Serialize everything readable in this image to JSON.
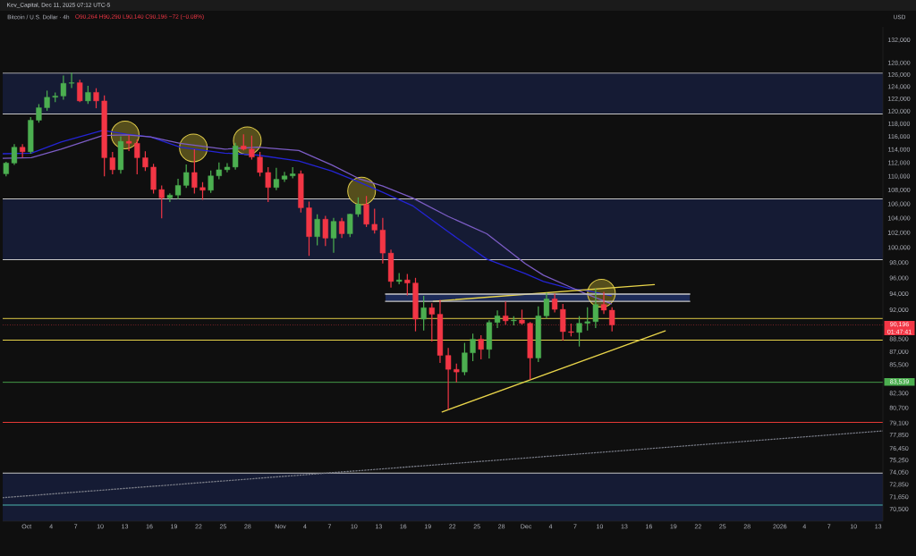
{
  "chart_data": {
    "type": "candlestick",
    "title": "Bitcoin / U.S. Dollar · 4h",
    "subtitle": "O90,264 H90,290 L90,140 C90,196 −72 (−0.08%)",
    "ylabel": "USD",
    "annotations": [
      "Kev_Capital, Dec 11, 2025 07:12 UTC-5",
      "01:47:41"
    ],
    "x": [
      "2025-09-28T12:00",
      "2025-09-29T12:00",
      "2025-09-30T12:00",
      "2025-10-01T12:00",
      "2025-10-02T12:00",
      "2025-10-03T12:00",
      "2025-10-04T12:00",
      "2025-10-05T12:00",
      "2025-10-06T12:00",
      "2025-10-07T12:00",
      "2025-10-08T12:00",
      "2025-10-09T12:00",
      "2025-10-10T12:00",
      "2025-10-11T12:00",
      "2025-10-12T12:00",
      "2025-10-13T12:00",
      "2025-10-14T12:00",
      "2025-10-15T12:00",
      "2025-10-16T12:00",
      "2025-10-17T12:00",
      "2025-10-18T12:00",
      "2025-10-19T12:00",
      "2025-10-20T12:00",
      "2025-10-21T12:00",
      "2025-10-22T12:00",
      "2025-10-23T12:00",
      "2025-10-24T12:00",
      "2025-10-25T12:00",
      "2025-10-26T12:00",
      "2025-10-27T12:00",
      "2025-10-28T12:00",
      "2025-10-29T12:00",
      "2025-10-30T12:00",
      "2025-10-31T12:00",
      "2025-11-01T12:00",
      "2025-11-02T12:00",
      "2025-11-03T12:00",
      "2025-11-04T12:00",
      "2025-11-05T12:00",
      "2025-11-06T12:00",
      "2025-11-07T12:00",
      "2025-11-08T12:00",
      "2025-11-09T12:00",
      "2025-11-10T12:00",
      "2025-11-11T12:00",
      "2025-11-12T12:00",
      "2025-11-13T12:00",
      "2025-11-14T12:00",
      "2025-11-15T12:00",
      "2025-11-16T12:00",
      "2025-11-17T12:00",
      "2025-11-18T12:00",
      "2025-11-19T12:00",
      "2025-11-20T12:00",
      "2025-11-21T12:00",
      "2025-11-22T12:00",
      "2025-11-23T12:00",
      "2025-11-24T12:00",
      "2025-11-25T12:00",
      "2025-11-26T12:00",
      "2025-11-27T12:00",
      "2025-11-28T12:00",
      "2025-11-29T12:00",
      "2025-11-30T12:00",
      "2025-12-01T12:00",
      "2025-12-02T12:00",
      "2025-12-03T12:00",
      "2025-12-04T12:00",
      "2025-12-05T12:00",
      "2025-12-06T12:00",
      "2025-12-07T12:00",
      "2025-12-08T12:00",
      "2025-12-09T12:00",
      "2025-12-10T12:00",
      "2025-12-11T12:00"
    ],
    "ohlc": [
      [
        110400,
        112100,
        110100,
        112000
      ],
      [
        112000,
        114800,
        111800,
        114400
      ],
      [
        114400,
        114800,
        112900,
        113700
      ],
      [
        113700,
        119000,
        113500,
        118600
      ],
      [
        118600,
        121100,
        118300,
        120600
      ],
      [
        120600,
        123300,
        120200,
        122300
      ],
      [
        122300,
        123000,
        121600,
        122500
      ],
      [
        122500,
        125800,
        122000,
        124600
      ],
      [
        124600,
        126300,
        123900,
        124700
      ],
      [
        124700,
        125100,
        121600,
        121700
      ],
      [
        121700,
        124100,
        121300,
        123100
      ],
      [
        123100,
        123700,
        120600,
        121700
      ],
      [
        121700,
        122500,
        110100,
        112800
      ],
      [
        112800,
        113600,
        110400,
        111000
      ],
      [
        111000,
        116000,
        110500,
        115300
      ],
      [
        115300,
        116200,
        113900,
        115000
      ],
      [
        115000,
        115500,
        110400,
        112800
      ],
      [
        112800,
        113700,
        110900,
        111400
      ],
      [
        111400,
        111800,
        107600,
        108100
      ],
      [
        108100,
        108600,
        104100,
        106900
      ],
      [
        106900,
        107500,
        106400,
        107300
      ],
      [
        107300,
        109600,
        106800,
        108700
      ],
      [
        108700,
        111700,
        108400,
        110600
      ],
      [
        110600,
        114000,
        107600,
        108400
      ],
      [
        108400,
        109100,
        106700,
        108000
      ],
      [
        108000,
        110800,
        107700,
        110100
      ],
      [
        110100,
        112000,
        109700,
        111000
      ],
      [
        111000,
        111900,
        110700,
        111400
      ],
      [
        111400,
        115000,
        111100,
        114600
      ],
      [
        114600,
        116300,
        114000,
        114100
      ],
      [
        114100,
        116100,
        112600,
        112900
      ],
      [
        112900,
        113600,
        110100,
        110600
      ],
      [
        110600,
        111300,
        106400,
        108400
      ],
      [
        108400,
        111200,
        108100,
        109600
      ],
      [
        109600,
        110600,
        109300,
        110100
      ],
      [
        110100,
        111300,
        109800,
        110400
      ],
      [
        110400,
        110800,
        104900,
        105500
      ],
      [
        105500,
        106300,
        99000,
        101500
      ],
      [
        101500,
        104500,
        100400,
        103900
      ],
      [
        103900,
        104300,
        100300,
        101300
      ],
      [
        101300,
        104000,
        99400,
        103600
      ],
      [
        103600,
        104000,
        101400,
        101900
      ],
      [
        101900,
        104600,
        101500,
        104600
      ],
      [
        104600,
        106900,
        104300,
        106000
      ],
      [
        106000,
        107100,
        102900,
        103200
      ],
      [
        103200,
        105300,
        102000,
        102400
      ],
      [
        102400,
        104000,
        98000,
        99300
      ],
      [
        99300,
        99700,
        94900,
        95600
      ],
      [
        95600,
        96600,
        95300,
        95800
      ],
      [
        95800,
        96500,
        93900,
        95400
      ],
      [
        95400,
        96000,
        89500,
        90900
      ],
      [
        90900,
        93700,
        89600,
        92300
      ],
      [
        92300,
        92800,
        88300,
        91500
      ],
      [
        91500,
        93200,
        85800,
        86600
      ],
      [
        86600,
        87400,
        80600,
        85000
      ],
      [
        85000,
        85600,
        83600,
        84700
      ],
      [
        84700,
        88000,
        84400,
        86900
      ],
      [
        86900,
        89100,
        86000,
        88500
      ],
      [
        88500,
        88900,
        86200,
        87300
      ],
      [
        87300,
        90700,
        86300,
        90500
      ],
      [
        90500,
        91900,
        89900,
        91300
      ],
      [
        91300,
        93000,
        90300,
        90700
      ],
      [
        90700,
        91200,
        90200,
        90800
      ],
      [
        90800,
        92000,
        90300,
        90400
      ],
      [
        90400,
        90500,
        83900,
        86300
      ],
      [
        86300,
        92400,
        85900,
        91300
      ],
      [
        91300,
        94100,
        91000,
        93400
      ],
      [
        93400,
        94000,
        91800,
        92100
      ],
      [
        92100,
        92700,
        88400,
        89400
      ],
      [
        89400,
        90300,
        88900,
        89300
      ],
      [
        89300,
        91200,
        87700,
        90400
      ],
      [
        90400,
        92300,
        89600,
        90600
      ],
      [
        90600,
        94600,
        89900,
        92700
      ],
      [
        92700,
        94200,
        91600,
        92000
      ],
      [
        92000,
        92300,
        89500,
        90196
      ]
    ],
    "colors": [
      "#4caf50",
      "#4caf50",
      "#f23645",
      "#4caf50",
      "#4caf50",
      "#4caf50",
      "#4caf50",
      "#4caf50",
      "#4caf50",
      "#f23645",
      "#4caf50",
      "#f23645",
      "#f23645",
      "#f23645",
      "#4caf50",
      "#f23645",
      "#f23645",
      "#f23645",
      "#f23645",
      "#f23645",
      "#4caf50",
      "#4caf50",
      "#4caf50",
      "#f23645",
      "#f23645",
      "#4caf50",
      "#4caf50",
      "#4caf50",
      "#4caf50",
      "#f23645",
      "#f23645",
      "#f23645",
      "#f23645",
      "#4caf50",
      "#4caf50",
      "#4caf50",
      "#f23645",
      "#f23645",
      "#4caf50",
      "#f23645",
      "#4caf50",
      "#f23645",
      "#4caf50",
      "#4caf50",
      "#f23645",
      "#f23645",
      "#f23645",
      "#f23645",
      "#4caf50",
      "#f23645",
      "#f23645",
      "#4caf50",
      "#f23645",
      "#f23645",
      "#f23645",
      "#f23645",
      "#4caf50",
      "#4caf50",
      "#f23645",
      "#4caf50",
      "#4caf50",
      "#f23645",
      "#4caf50",
      "#f23645",
      "#f23645",
      "#4caf50",
      "#4caf50",
      "#f23645",
      "#f23645",
      "#f23645",
      "#4caf50",
      "#4caf50",
      "#4caf50",
      "#f23645",
      "#f23645"
    ],
    "series": [
      {
        "type": "line",
        "color": "#2424d4",
        "x": [
          "2025-09-28T02:00",
          "2025-10-01T14:00",
          "2025-10-05T05:00",
          "2025-10-10T07:00",
          "2025-10-13T05:00",
          "2025-10-16T03:00",
          "2025-10-19T18:00",
          "2025-10-25T05:00",
          "2025-10-29T05:00",
          "2025-11-03T06:00",
          "2025-11-07T07:00",
          "2025-11-10T14:00",
          "2025-11-13T12:00",
          "2025-11-17T03:00",
          "2025-11-21T11:00",
          "2025-11-26T05:00",
          "2025-11-30T22:00",
          "2025-12-03T03:00",
          "2025-12-06T09:00",
          "2025-12-08T04:00",
          "2025-12-11T10:00"
        ],
        "values": [
          113400,
          113500,
          115200,
          117000,
          116400,
          116000,
          114400,
          113500,
          113200,
          112300,
          110800,
          109200,
          107700,
          105800,
          102200,
          98500,
          96600,
          95600,
          94700,
          94500,
          93800
        ]
      },
      {
        "type": "line",
        "color": "#7b5cc4",
        "x": [
          "2025-09-28T02:00",
          "2025-10-01T14:00",
          "2025-10-05T05:00",
          "2025-10-10T07:00",
          "2025-10-13T05:00",
          "2025-10-16T03:00",
          "2025-10-19T18:00",
          "2025-10-25T05:00",
          "2025-10-29T05:00",
          "2025-11-03T06:00",
          "2025-11-07T07:00",
          "2025-11-10T14:00",
          "2025-11-13T12:00",
          "2025-11-17T03:00",
          "2025-11-21T11:00",
          "2025-11-26T05:00",
          "2025-11-30T22:00",
          "2025-12-03T03:00",
          "2025-12-06T09:00",
          "2025-12-08T04:00",
          "2025-12-11T10:00"
        ],
        "values": [
          112700,
          112800,
          114100,
          116200,
          116300,
          116000,
          115000,
          114100,
          114400,
          113900,
          111700,
          109700,
          108600,
          106900,
          104300,
          101900,
          97900,
          96400,
          94900,
          94100,
          92800
        ]
      },
      {
        "type": "line",
        "color": "#e8d44a",
        "x": [
          "2025-11-19T16:00",
          "2025-12-16T16:00"
        ],
        "values": [
          93100,
          95200
        ]
      },
      {
        "type": "line",
        "color": "#e8d44a",
        "x": [
          "2025-11-20T18:00",
          "2025-12-18T00:00"
        ],
        "values": [
          80300,
          89500
        ]
      },
      {
        "type": "line",
        "color": "#787b86",
        "line_style": "dotted",
        "x": [
          "2025-09-28T02:00",
          "2026-01-13T14:00"
        ],
        "values": [
          71600,
          78300
        ]
      },
      {
        "type": "line",
        "color": "#c8c8c8",
        "x": [
          "2025-11-13T20:00",
          "2025-12-21T00:00"
        ],
        "values": [
          94000,
          94000
        ],
        "lower": [
          93100,
          93100
        ],
        "upper": [
          94000,
          94000
        ]
      },
      {
        "type": "line",
        "color": "#c8c8c8",
        "x": [
          "2025-11-13T20:00",
          "2025-12-21T00:00"
        ],
        "values": [
          93100,
          93100
        ]
      },
      {
        "type": "scatter",
        "color": "#e0cc4a",
        "marker": "circle",
        "x": [
          "2025-10-13T01:00",
          "2025-10-21T09:00",
          "2025-10-27T23:00",
          "2025-11-10T22:00",
          "2025-12-10T05:00"
        ],
        "values": [
          116300,
          114300,
          115400,
          107900,
          94100
        ]
      }
    ],
    "ref_lines": [
      {
        "axis": "y",
        "value": 90196,
        "label": "90,196",
        "color": "#f23645",
        "line_style": "dotted"
      },
      {
        "axis": "y",
        "value": 83539,
        "label": "83,539",
        "color": "#4caf50"
      },
      {
        "axis": "y",
        "value": 126300,
        "color": "#c8c8c8"
      },
      {
        "axis": "y",
        "value": 119600,
        "color": "#c8c8c8"
      },
      {
        "axis": "y",
        "value": 106750,
        "color": "#c8c8c8"
      },
      {
        "axis": "y",
        "value": 98430,
        "color": "#c8c8c8"
      },
      {
        "axis": "y",
        "value": 91000,
        "color": "#e8d44a"
      },
      {
        "axis": "y",
        "value": 88400,
        "color": "#e8d44a"
      },
      {
        "axis": "y",
        "value": 79200,
        "color": "#e53935"
      },
      {
        "axis": "y",
        "value": 74000,
        "color": "#c8c8c8"
      },
      {
        "axis": "y",
        "value": 70900,
        "color": "#4db6ac"
      }
    ],
    "bands": [
      {
        "axis": "y",
        "from": 119600,
        "to": 126300,
        "color": "#151b34"
      },
      {
        "axis": "y",
        "from": 98430,
        "to": 106750,
        "color": "#151b34"
      },
      {
        "axis": "y",
        "from": 69400,
        "to": 74000,
        "color": "#151b34"
      }
    ],
    "xlim": [
      "2025-09-28T02:00",
      "2026-01-13T14:00"
    ],
    "ylim": [
      69400,
      134400
    ],
    "log": true,
    "xticks": [
      {
        "value": "2025-10-01",
        "label": "Oct"
      },
      {
        "value": "2025-10-04",
        "label": "4"
      },
      {
        "value": "2025-10-07",
        "label": "7"
      },
      {
        "value": "2025-10-10",
        "label": "10"
      },
      {
        "value": "2025-10-13",
        "label": "13"
      },
      {
        "value": "2025-10-16",
        "label": "16"
      },
      {
        "value": "2025-10-19",
        "label": "19"
      },
      {
        "value": "2025-10-22",
        "label": "22"
      },
      {
        "value": "2025-10-25",
        "label": "25"
      },
      {
        "value": "2025-10-28",
        "label": "28"
      },
      {
        "value": "2025-11-01",
        "label": "Nov"
      },
      {
        "value": "2025-11-04",
        "label": "4"
      },
      {
        "value": "2025-11-07",
        "label": "7"
      },
      {
        "value": "2025-11-10",
        "label": "10"
      },
      {
        "value": "2025-11-13",
        "label": "13"
      },
      {
        "value": "2025-11-16",
        "label": "16"
      },
      {
        "value": "2025-11-19",
        "label": "19"
      },
      {
        "value": "2025-11-22",
        "label": "22"
      },
      {
        "value": "2025-11-25",
        "label": "25"
      },
      {
        "value": "2025-11-28",
        "label": "28"
      },
      {
        "value": "2025-12-01",
        "label": "Dec"
      },
      {
        "value": "2025-12-04",
        "label": "4"
      },
      {
        "value": "2025-12-07",
        "label": "7"
      },
      {
        "value": "2025-12-10",
        "label": "10"
      },
      {
        "value": "2025-12-13",
        "label": "13"
      },
      {
        "value": "2025-12-16",
        "label": "16"
      },
      {
        "value": "2025-12-19",
        "label": "19"
      },
      {
        "value": "2025-12-22",
        "label": "22"
      },
      {
        "value": "2025-12-25",
        "label": "25"
      },
      {
        "value": "2025-12-28",
        "label": "28"
      },
      {
        "value": "2026-01-01",
        "label": "2026"
      },
      {
        "value": "2026-01-04",
        "label": "4"
      },
      {
        "value": "2026-01-07",
        "label": "7"
      },
      {
        "value": "2026-01-10",
        "label": "10"
      },
      {
        "value": "2026-01-13",
        "label": "13"
      }
    ],
    "yticks": [
      {
        "value": 132000,
        "label": "132,000"
      },
      {
        "value": 128000,
        "label": "128,000"
      },
      {
        "value": 126000,
        "label": "126,000"
      },
      {
        "value": 124000,
        "label": "124,000"
      },
      {
        "value": 122000,
        "label": "122,000"
      },
      {
        "value": 120000,
        "label": "120,000"
      },
      {
        "value": 118000,
        "label": "118,000"
      },
      {
        "value": 116000,
        "label": "116,000"
      },
      {
        "value": 114000,
        "label": "114,000"
      },
      {
        "value": 112000,
        "label": "112,000"
      },
      {
        "value": 110000,
        "label": "110,000"
      },
      {
        "value": 108000,
        "label": "108,000"
      },
      {
        "value": 106000,
        "label": "106,000"
      },
      {
        "value": 104000,
        "label": "104,000"
      },
      {
        "value": 102000,
        "label": "102,000"
      },
      {
        "value": 100000,
        "label": "100,000"
      },
      {
        "value": 98000,
        "label": "98,000"
      },
      {
        "value": 96000,
        "label": "96,000"
      },
      {
        "value": 94000,
        "label": "94,000"
      },
      {
        "value": 92000,
        "label": "92,000"
      },
      {
        "value": 88500,
        "label": "88,500"
      },
      {
        "value": 87000,
        "label": "87,000"
      },
      {
        "value": 85500,
        "label": "85,500"
      },
      {
        "value": 82300,
        "label": "82,300"
      },
      {
        "value": 80700,
        "label": "80,700"
      },
      {
        "value": 79100,
        "label": "79,100"
      },
      {
        "value": 77850,
        "label": "77,850"
      },
      {
        "value": 76450,
        "label": "76,450"
      },
      {
        "value": 75250,
        "label": "75,250"
      },
      {
        "value": 74050,
        "label": "74,050"
      },
      {
        "value": 72850,
        "label": "72,850"
      },
      {
        "value": 71650,
        "label": "71,650"
      },
      {
        "value": 70500,
        "label": "70,500"
      }
    ]
  }
}
